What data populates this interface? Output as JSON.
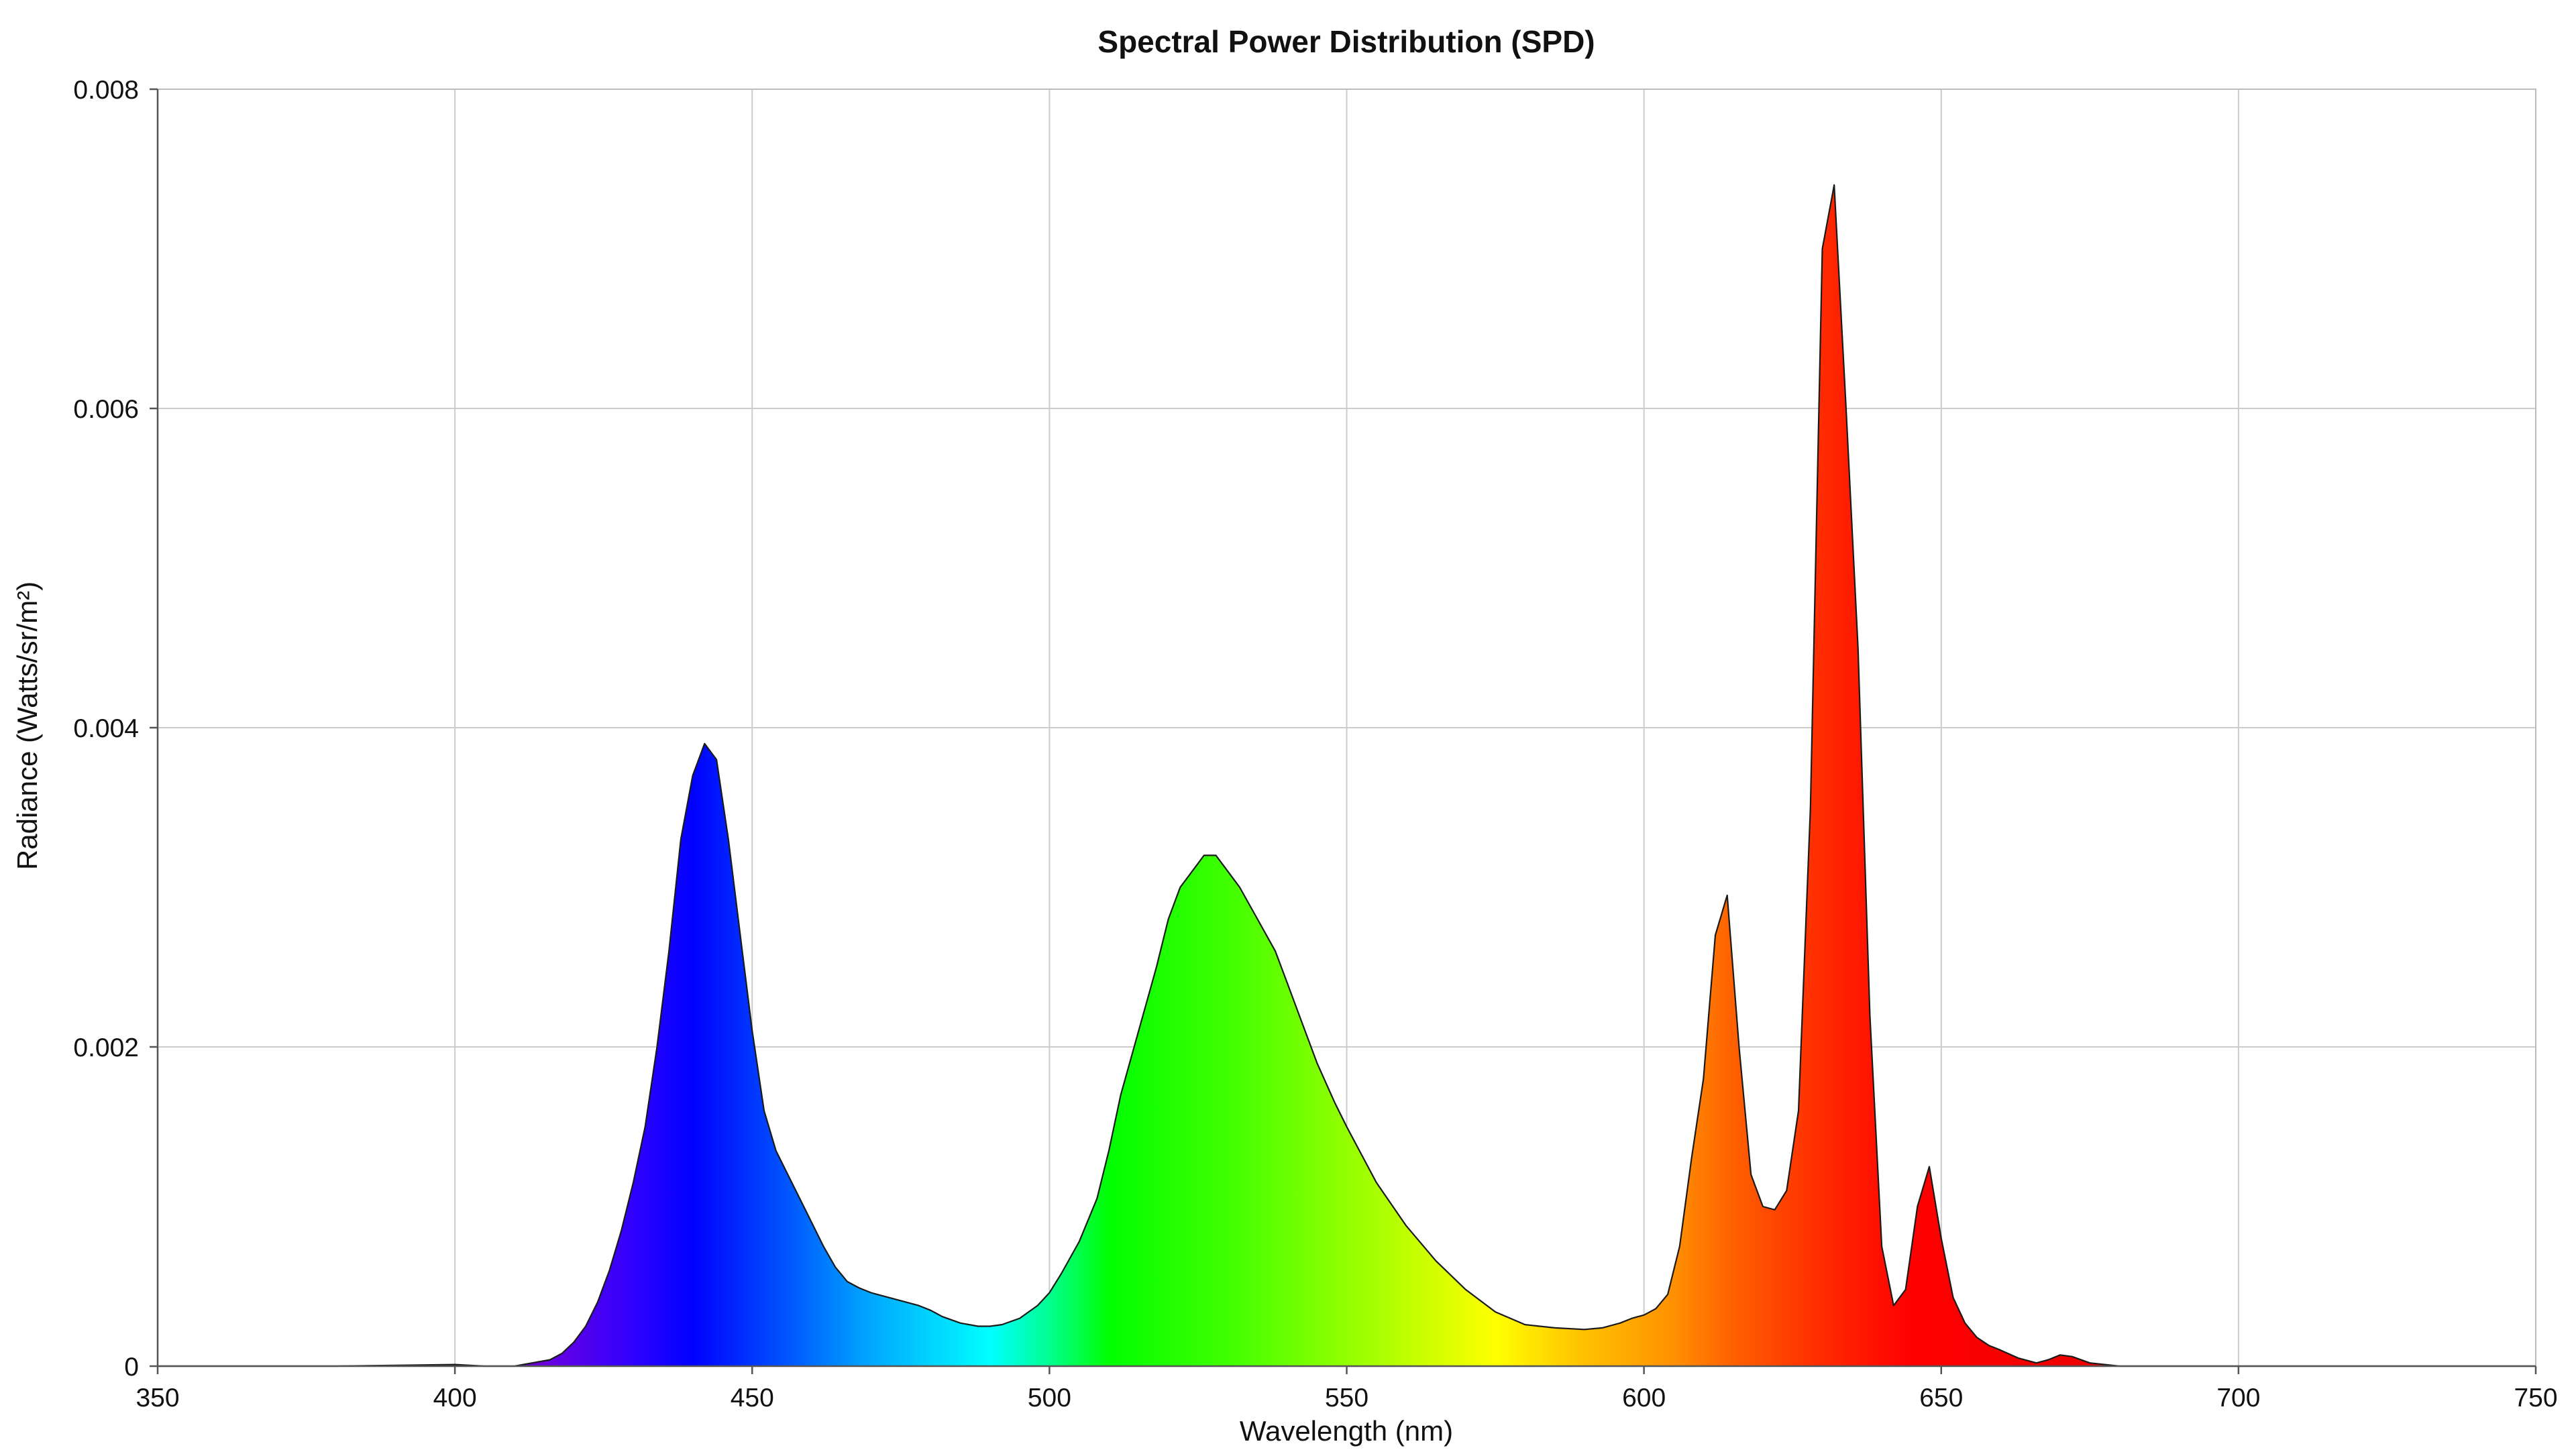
{
  "chart_data": {
    "type": "area",
    "title": "Spectral Power Distribution (SPD)",
    "xlabel": "Wavelength (nm)",
    "ylabel": "Radiance (Watts/sr/m²)",
    "xlim": [
      350,
      750
    ],
    "ylim": [
      0,
      0.008
    ],
    "x_ticks": [
      350,
      400,
      450,
      500,
      550,
      600,
      650,
      700,
      750
    ],
    "y_ticks": [
      {
        "value": 0,
        "label": "0"
      },
      {
        "value": 0.002,
        "label": "0.002"
      },
      {
        "value": 0.004,
        "label": "0.004"
      },
      {
        "value": 0.006,
        "label": "0.006"
      },
      {
        "value": 0.008,
        "label": "0.008"
      }
    ],
    "grid": true,
    "legend": "none",
    "fill": "visible-spectrum-gradient",
    "series": [
      {
        "x": [
          350,
          380,
          400,
          405,
          410,
          413,
          416,
          418,
          420,
          422,
          424,
          426,
          428,
          430,
          432,
          434,
          436,
          438,
          440,
          442,
          444,
          446,
          448,
          450,
          452,
          454,
          456,
          458,
          460,
          462,
          464,
          466,
          468,
          470,
          472,
          475,
          478,
          480,
          482,
          485,
          488,
          490,
          492,
          495,
          498,
          500,
          502,
          505,
          508,
          510,
          512,
          515,
          518,
          520,
          522,
          524,
          526,
          528,
          530,
          532,
          535,
          538,
          540,
          542,
          545,
          548,
          550,
          555,
          560,
          565,
          570,
          575,
          580,
          585,
          590,
          593,
          596,
          598,
          600,
          602,
          604,
          606,
          608,
          610,
          612,
          614,
          616,
          618,
          620,
          622,
          624,
          626,
          628,
          630,
          632,
          634,
          636,
          638,
          640,
          642,
          644,
          646,
          648,
          650,
          652,
          654,
          656,
          658,
          660,
          663,
          666,
          668,
          670,
          672,
          675,
          680,
          700,
          750
        ],
        "y": [
          0,
          0,
          1e-05,
          0,
          0,
          2e-05,
          4e-05,
          8e-05,
          0.00015,
          0.00025,
          0.0004,
          0.0006,
          0.00085,
          0.00115,
          0.0015,
          0.002,
          0.0026,
          0.0033,
          0.0037,
          0.0039,
          0.0038,
          0.0033,
          0.0027,
          0.0021,
          0.0016,
          0.00135,
          0.0012,
          0.00105,
          0.0009,
          0.00075,
          0.00062,
          0.00053,
          0.00049,
          0.00046,
          0.00044,
          0.00041,
          0.00038,
          0.00035,
          0.00031,
          0.00027,
          0.00025,
          0.00025,
          0.00026,
          0.0003,
          0.00038,
          0.00046,
          0.00058,
          0.00078,
          0.00105,
          0.00135,
          0.0017,
          0.0021,
          0.0025,
          0.0028,
          0.003,
          0.0031,
          0.0032,
          0.0032,
          0.0031,
          0.003,
          0.0028,
          0.0026,
          0.0024,
          0.0022,
          0.0019,
          0.00165,
          0.0015,
          0.00115,
          0.00088,
          0.00066,
          0.00048,
          0.00034,
          0.00026,
          0.00024,
          0.00023,
          0.00024,
          0.00027,
          0.0003,
          0.00032,
          0.00036,
          0.00045,
          0.00075,
          0.0013,
          0.0018,
          0.0027,
          0.00295,
          0.002,
          0.0012,
          0.001,
          0.00098,
          0.0011,
          0.0016,
          0.0035,
          0.007,
          0.0074,
          0.006,
          0.0045,
          0.0022,
          0.00075,
          0.00038,
          0.00048,
          0.001,
          0.00125,
          0.0008,
          0.00043,
          0.00027,
          0.00018,
          0.00013,
          0.0001,
          5e-05,
          2e-05,
          4e-05,
          7e-05,
          6e-05,
          2e-05,
          0,
          0,
          0
        ]
      }
    ]
  }
}
